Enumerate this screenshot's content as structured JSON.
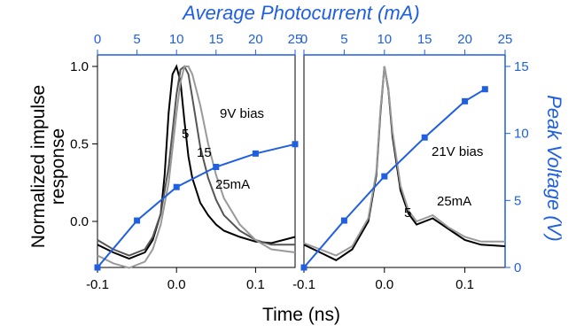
{
  "chart_data": [
    {
      "type": "line",
      "panel": "left",
      "title": "",
      "top_axis_title": "Average Photocurrent (mA)",
      "left_axis_title": "Normalized impulse response",
      "xlabel": "Time (ns)",
      "xlim": [
        -0.1,
        0.15
      ],
      "ylim": [
        -0.3,
        1.0
      ],
      "x_ticks": [
        "-0.1",
        "0.0",
        "0.1"
      ],
      "y_ticks": [
        "1.0",
        "0.5",
        "0.0"
      ],
      "top_xlim": [
        0,
        25
      ],
      "top_ticks": [
        "0",
        "5",
        "10",
        "15",
        "20",
        "25"
      ],
      "grid": false,
      "annotations": [
        "9V bias",
        "5",
        "15",
        "25mA"
      ],
      "colors": {
        "black": "#000000",
        "dark_gray": "#555555",
        "gray": "#999999",
        "blue": "#1f5fe0"
      },
      "series": [
        {
          "annotation": "5",
          "color": "#000000",
          "x": [
            -0.1,
            -0.08,
            -0.06,
            -0.04,
            -0.03,
            -0.02,
            -0.015,
            -0.01,
            -0.005,
            0.0,
            0.005,
            0.01,
            0.015,
            0.02,
            0.03,
            0.04,
            0.05,
            0.06,
            0.08,
            0.1,
            0.12,
            0.15
          ],
          "y": [
            -0.15,
            -0.2,
            -0.24,
            -0.2,
            -0.12,
            0.05,
            0.3,
            0.7,
            0.95,
            1.0,
            0.9,
            0.65,
            0.42,
            0.28,
            0.12,
            0.04,
            -0.02,
            -0.06,
            -0.1,
            -0.13,
            -0.14,
            -0.1
          ]
        },
        {
          "annotation": "15",
          "color": "#555555",
          "x": [
            -0.1,
            -0.08,
            -0.06,
            -0.04,
            -0.03,
            -0.02,
            -0.01,
            0.0,
            0.005,
            0.01,
            0.015,
            0.02,
            0.03,
            0.04,
            0.05,
            0.06,
            0.08,
            0.1,
            0.12,
            0.15
          ],
          "y": [
            -0.12,
            -0.18,
            -0.22,
            -0.18,
            -0.1,
            0.05,
            0.35,
            0.82,
            0.98,
            1.0,
            0.95,
            0.8,
            0.48,
            0.28,
            0.14,
            0.04,
            -0.06,
            -0.12,
            -0.15,
            -0.15
          ]
        },
        {
          "annotation": "25mA",
          "color": "#999999",
          "x": [
            -0.1,
            -0.08,
            -0.06,
            -0.04,
            -0.03,
            -0.02,
            -0.01,
            0.0,
            0.005,
            0.01,
            0.015,
            0.02,
            0.03,
            0.04,
            0.05,
            0.06,
            0.08,
            0.1,
            0.12,
            0.15
          ],
          "y": [
            -0.22,
            -0.27,
            -0.3,
            -0.26,
            -0.18,
            -0.02,
            0.25,
            0.7,
            0.9,
            1.0,
            1.0,
            0.95,
            0.75,
            0.5,
            0.3,
            0.15,
            -0.02,
            -0.12,
            -0.18,
            -0.2
          ]
        }
      ],
      "photocurrent_series": {
        "name": "Peak Voltage",
        "color": "#1f5fe0",
        "photocurrent_mA": [
          0,
          5,
          10,
          15,
          20,
          25
        ],
        "peak_voltage_V": [
          0,
          3.5,
          6.0,
          7.5,
          8.5,
          9.2
        ]
      }
    },
    {
      "type": "line",
      "panel": "right",
      "title": "",
      "right_axis_title": "Peak Voltage (V)",
      "xlim": [
        -0.1,
        0.15
      ],
      "ylim": [
        -0.3,
        1.0
      ],
      "x_ticks": [
        "-0.1",
        "0.0",
        "0.1"
      ],
      "right_ylim": [
        0,
        15
      ],
      "right_ticks": [
        "15",
        "10",
        "5",
        "0"
      ],
      "top_xlim": [
        0,
        25
      ],
      "top_ticks": [
        "0",
        "5",
        "10",
        "15",
        "20",
        "25"
      ],
      "grid": false,
      "annotations": [
        "21V bias",
        "5",
        "25mA"
      ],
      "series": [
        {
          "annotation": "5",
          "color": "#000000",
          "x": [
            -0.1,
            -0.08,
            -0.06,
            -0.04,
            -0.02,
            -0.01,
            -0.005,
            0.0,
            0.005,
            0.01,
            0.02,
            0.03,
            0.04,
            0.06,
            0.08,
            0.1,
            0.12,
            0.15
          ],
          "y": [
            -0.15,
            -0.2,
            -0.25,
            -0.18,
            0.0,
            0.3,
            0.7,
            1.0,
            0.85,
            0.55,
            0.2,
            0.05,
            -0.02,
            0.02,
            -0.05,
            -0.12,
            -0.15,
            -0.16
          ]
        },
        {
          "annotation": "25mA",
          "color": "#999999",
          "x": [
            -0.1,
            -0.08,
            -0.06,
            -0.04,
            -0.02,
            -0.01,
            -0.005,
            0.0,
            0.005,
            0.01,
            0.02,
            0.03,
            0.04,
            0.06,
            0.08,
            0.1,
            0.12,
            0.15
          ],
          "y": [
            -0.14,
            -0.18,
            -0.22,
            -0.16,
            0.02,
            0.32,
            0.72,
            1.0,
            0.86,
            0.58,
            0.23,
            0.07,
            0.0,
            0.04,
            -0.04,
            -0.1,
            -0.13,
            -0.13
          ]
        }
      ],
      "photocurrent_series": {
        "name": "Peak Voltage",
        "color": "#1f5fe0",
        "photocurrent_mA": [
          0,
          5,
          10,
          15,
          20,
          22.5
        ],
        "peak_voltage_V": [
          0,
          3.5,
          6.8,
          9.7,
          12.4,
          13.3
        ]
      }
    }
  ]
}
